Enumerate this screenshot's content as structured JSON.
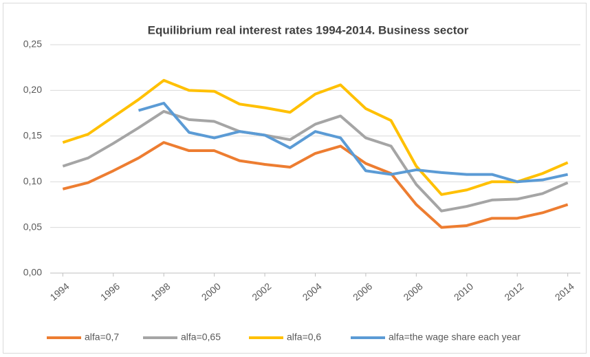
{
  "chart_data": {
    "type": "line",
    "title": "Equilibrium real interest rates 1994-2014.  Business sector",
    "x": [
      1994,
      1995,
      1996,
      1997,
      1998,
      1999,
      2000,
      2001,
      2002,
      2003,
      2004,
      2005,
      2006,
      2007,
      2008,
      2009,
      2010,
      2011,
      2012,
      2013,
      2014
    ],
    "xlim": [
      1993.5,
      2014.5
    ],
    "xticks": [
      1994,
      1996,
      1998,
      2000,
      2002,
      2004,
      2006,
      2008,
      2010,
      2012,
      2014
    ],
    "ylim": [
      0,
      0.25
    ],
    "yticks": [
      {
        "value": 0,
        "label": "0,00"
      },
      {
        "value": 0.05,
        "label": "0,05"
      },
      {
        "value": 0.1,
        "label": "0,10"
      },
      {
        "value": 0.15,
        "label": "0,15"
      },
      {
        "value": 0.2,
        "label": "0,20"
      },
      {
        "value": 0.25,
        "label": "0,25"
      }
    ],
    "grid": true,
    "legend": "bottom",
    "series": [
      {
        "name": "alfa=0,7",
        "color": "#ed7d31",
        "values": [
          0.092,
          0.099,
          0.112,
          0.126,
          0.143,
          0.134,
          0.134,
          0.123,
          0.119,
          0.116,
          0.131,
          0.139,
          0.12,
          0.109,
          0.075,
          0.05,
          0.052,
          0.06,
          0.06,
          0.066,
          0.075
        ]
      },
      {
        "name": "alfa=0,65",
        "color": "#a5a5a5",
        "values": [
          0.117,
          0.126,
          0.142,
          0.159,
          0.177,
          0.168,
          0.166,
          0.155,
          0.151,
          0.146,
          0.163,
          0.172,
          0.148,
          0.139,
          0.097,
          0.068,
          0.073,
          0.08,
          0.081,
          0.087,
          0.099
        ]
      },
      {
        "name": "alfa=0,6",
        "color": "#ffc000",
        "values": [
          0.143,
          0.152,
          0.171,
          0.19,
          0.211,
          0.2,
          0.199,
          0.185,
          0.181,
          0.176,
          0.196,
          0.206,
          0.18,
          0.167,
          0.117,
          0.086,
          0.091,
          0.1,
          0.1,
          0.109,
          0.121
        ]
      },
      {
        "name": "alfa=the wage share each year",
        "color": "#5b9bd5",
        "values": [
          null,
          null,
          null,
          0.178,
          0.186,
          0.154,
          0.148,
          0.155,
          0.151,
          0.137,
          0.155,
          0.148,
          0.112,
          0.108,
          0.113,
          0.11,
          0.108,
          0.108,
          0.1,
          0.102,
          0.108
        ]
      }
    ]
  }
}
